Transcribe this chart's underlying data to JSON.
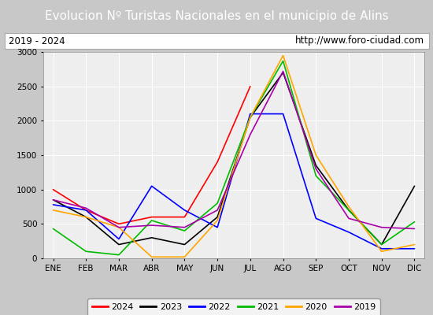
{
  "title": "Evolucion Nº Turistas Nacionales en el municipio de Alins",
  "subtitle_left": "2019 - 2024",
  "subtitle_right": "http://www.foro-ciudad.com",
  "months": [
    "ENE",
    "FEB",
    "MAR",
    "ABR",
    "MAY",
    "JUN",
    "JUL",
    "AGO",
    "SEP",
    "OCT",
    "NOV",
    "DIC"
  ],
  "ylim": [
    0,
    3000
  ],
  "yticks": [
    0,
    500,
    1000,
    1500,
    2000,
    2500,
    3000
  ],
  "series": {
    "2024": {
      "color": "#ff0000",
      "values": [
        1000,
        700,
        500,
        600,
        600,
        1400,
        2500,
        null,
        null,
        null,
        null,
        null
      ]
    },
    "2023": {
      "color": "#000000",
      "values": [
        850,
        600,
        200,
        300,
        200,
        600,
        2050,
        2700,
        1350,
        700,
        200,
        1050
      ]
    },
    "2022": {
      "color": "#0000ff",
      "values": [
        780,
        700,
        280,
        1050,
        700,
        450,
        2100,
        2100,
        580,
        380,
        140,
        140
      ]
    },
    "2021": {
      "color": "#00bb00",
      "values": [
        430,
        100,
        50,
        550,
        400,
        800,
        2050,
        2870,
        1200,
        700,
        200,
        530
      ]
    },
    "2020": {
      "color": "#ffa500",
      "values": [
        700,
        600,
        450,
        20,
        20,
        550,
        2050,
        2950,
        1500,
        750,
        100,
        200
      ]
    },
    "2019": {
      "color": "#aa00aa",
      "values": [
        850,
        730,
        450,
        480,
        450,
        700,
        1800,
        2720,
        1300,
        580,
        450,
        430
      ]
    }
  },
  "title_bg": "#4472c4",
  "title_color": "#ffffff",
  "title_fontsize": 11,
  "plot_bg": "#eeeeee",
  "grid_color": "#ffffff",
  "outer_bg": "#c8c8c8",
  "legend_order": [
    "2024",
    "2023",
    "2022",
    "2021",
    "2020",
    "2019"
  ]
}
